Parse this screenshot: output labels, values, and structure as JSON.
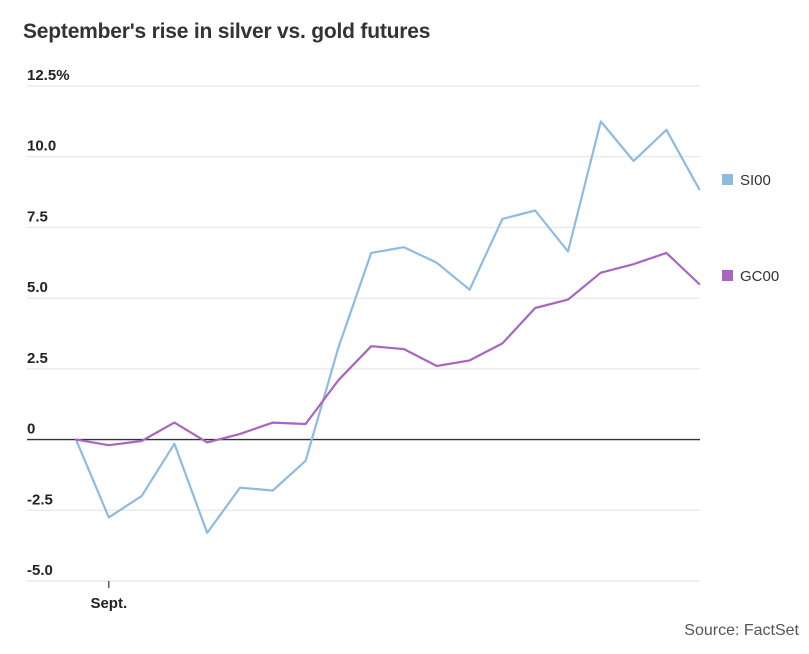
{
  "chart_data": {
    "type": "line",
    "title": "September's rise in silver vs. gold futures",
    "source": "Source: FactSet",
    "xlabel": "",
    "ylabel": "",
    "x_tick_labels": [
      "Sept."
    ],
    "y_tick_labels": [
      "12.5%",
      "10.0",
      "7.5",
      "5.0",
      "2.5",
      "0",
      "-2.5",
      "-5.0"
    ],
    "y_ticks": [
      12.5,
      10,
      7.5,
      5,
      2.5,
      0,
      -2.5,
      -5
    ],
    "ylim": [
      -5,
      12.5
    ],
    "grid": true,
    "legend_position": "right",
    "series": [
      {
        "name": "SI00",
        "color": "#8dbbe2",
        "values": [
          0,
          -2.75,
          -2.0,
          -0.15,
          -3.3,
          -1.7,
          -1.8,
          -0.75,
          3.25,
          6.6,
          6.8,
          6.25,
          5.3,
          7.8,
          8.1,
          6.65,
          11.25,
          9.85,
          10.95,
          8.85
        ]
      },
      {
        "name": "GC00",
        "color": "#a866c0",
        "values": [
          0,
          -0.2,
          -0.05,
          0.6,
          -0.1,
          0.2,
          0.6,
          0.55,
          2.1,
          3.3,
          3.2,
          2.6,
          2.8,
          3.4,
          4.65,
          4.95,
          5.9,
          6.2,
          6.6,
          5.5
        ]
      }
    ]
  }
}
